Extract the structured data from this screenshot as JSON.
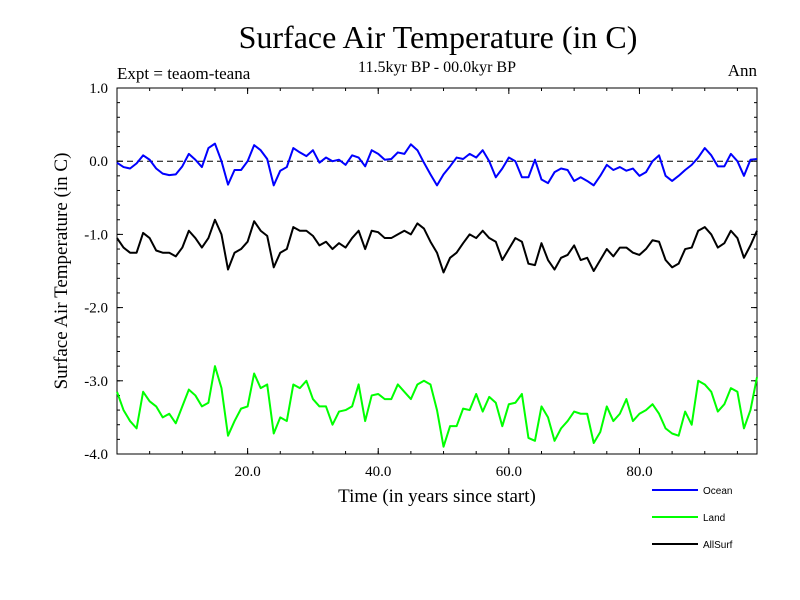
{
  "chart_data": {
    "type": "line",
    "title": "Surface Air Temperature (in C)",
    "subtitle": "11.5kyr BP - 00.0kyr BP",
    "experiment_label": "Expt = teaom-teana",
    "season_label": "Ann",
    "xlabel": "Time (in years since start)",
    "ylabel": "Surface Air Temperature (in C)",
    "xlim": [
      0,
      98
    ],
    "ylim": [
      -4.0,
      1.0
    ],
    "x_ticks": [
      20,
      40,
      60,
      80
    ],
    "x_tick_labels": [
      "20.0",
      "40.0",
      "60.0",
      "80.0"
    ],
    "y_ticks": [
      1.0,
      0.0,
      -1.0,
      -2.0,
      -3.0,
      -4.0
    ],
    "y_tick_labels": [
      "1.0",
      "0.0",
      "-1.0",
      "-2.0",
      "-3.0",
      "-4.0"
    ],
    "reference_line": 0.0,
    "x": [
      0,
      1,
      2,
      3,
      4,
      5,
      6,
      7,
      8,
      9,
      10,
      11,
      12,
      13,
      14,
      15,
      16,
      17,
      18,
      19,
      20,
      21,
      22,
      23,
      24,
      25,
      26,
      27,
      28,
      29,
      30,
      31,
      32,
      33,
      34,
      35,
      36,
      37,
      38,
      39,
      40,
      41,
      42,
      43,
      44,
      45,
      46,
      47,
      48,
      49,
      50,
      51,
      52,
      53,
      54,
      55,
      56,
      57,
      58,
      59,
      60,
      61,
      62,
      63,
      64,
      65,
      66,
      67,
      68,
      69,
      70,
      71,
      72,
      73,
      74,
      75,
      76,
      77,
      78,
      79,
      80,
      81,
      82,
      83,
      84,
      85,
      86,
      87,
      88,
      89,
      90,
      91,
      92,
      93,
      94,
      95,
      96,
      97,
      98
    ],
    "series": [
      {
        "name": "Ocean",
        "color": "#0000ff",
        "values": [
          -0.02,
          -0.08,
          -0.1,
          -0.03,
          0.08,
          0.02,
          -0.1,
          -0.17,
          -0.19,
          -0.18,
          -0.07,
          0.1,
          0.02,
          -0.08,
          0.18,
          0.24,
          0.0,
          -0.32,
          -0.12,
          -0.12,
          0.0,
          0.22,
          0.15,
          0.03,
          -0.33,
          -0.13,
          -0.08,
          0.18,
          0.12,
          0.07,
          0.15,
          -0.02,
          0.05,
          0.0,
          0.02,
          -0.05,
          0.08,
          0.05,
          -0.07,
          0.15,
          0.1,
          0.02,
          0.03,
          0.12,
          0.1,
          0.23,
          0.15,
          -0.02,
          -0.18,
          -0.33,
          -0.18,
          -0.07,
          0.05,
          0.03,
          0.1,
          0.05,
          0.15,
          0.0,
          -0.22,
          -0.1,
          0.05,
          0.0,
          -0.22,
          -0.22,
          0.02,
          -0.25,
          -0.3,
          -0.15,
          -0.1,
          -0.12,
          -0.27,
          -0.22,
          -0.27,
          -0.33,
          -0.2,
          -0.05,
          -0.12,
          -0.08,
          -0.13,
          -0.1,
          -0.2,
          -0.15,
          0.0,
          0.08,
          -0.2,
          -0.27,
          -0.2,
          -0.12,
          -0.05,
          0.05,
          0.18,
          0.08,
          -0.07,
          -0.07,
          0.1,
          0.0,
          -0.2,
          0.02,
          0.03
        ]
      },
      {
        "name": "Land",
        "color": "#00ff00",
        "values": [
          -3.15,
          -3.4,
          -3.55,
          -3.65,
          -3.15,
          -3.28,
          -3.35,
          -3.5,
          -3.45,
          -3.58,
          -3.35,
          -3.12,
          -3.2,
          -3.35,
          -3.3,
          -2.8,
          -3.1,
          -3.75,
          -3.55,
          -3.38,
          -3.35,
          -2.9,
          -3.1,
          -3.05,
          -3.72,
          -3.5,
          -3.55,
          -3.05,
          -3.1,
          -3.0,
          -3.25,
          -3.35,
          -3.35,
          -3.6,
          -3.42,
          -3.4,
          -3.35,
          -3.05,
          -3.55,
          -3.2,
          -3.18,
          -3.25,
          -3.25,
          -3.05,
          -3.15,
          -3.25,
          -3.05,
          -3.0,
          -3.05,
          -3.4,
          -3.9,
          -3.62,
          -3.62,
          -3.38,
          -3.4,
          -3.18,
          -3.42,
          -3.22,
          -3.3,
          -3.62,
          -3.32,
          -3.3,
          -3.18,
          -3.78,
          -3.82,
          -3.35,
          -3.5,
          -3.82,
          -3.65,
          -3.55,
          -3.42,
          -3.45,
          -3.45,
          -3.85,
          -3.7,
          -3.35,
          -3.55,
          -3.45,
          -3.25,
          -3.55,
          -3.45,
          -3.4,
          -3.32,
          -3.45,
          -3.65,
          -3.72,
          -3.75,
          -3.42,
          -3.6,
          -3.0,
          -3.05,
          -3.15,
          -3.42,
          -3.32,
          -3.1,
          -3.15,
          -3.65,
          -3.4,
          -2.95
        ]
      },
      {
        "name": "AllSurf",
        "color": "#000000",
        "values": [
          -1.05,
          -1.18,
          -1.25,
          -1.25,
          -0.98,
          -1.05,
          -1.22,
          -1.25,
          -1.25,
          -1.3,
          -1.18,
          -0.95,
          -1.05,
          -1.18,
          -1.05,
          -0.8,
          -1.0,
          -1.48,
          -1.25,
          -1.2,
          -1.1,
          -0.82,
          -0.95,
          -1.02,
          -1.45,
          -1.25,
          -1.2,
          -0.9,
          -0.95,
          -0.95,
          -1.02,
          -1.15,
          -1.1,
          -1.2,
          -1.12,
          -1.18,
          -1.05,
          -0.95,
          -1.2,
          -0.95,
          -0.97,
          -1.05,
          -1.05,
          -1.0,
          -0.95,
          -1.0,
          -0.85,
          -0.92,
          -1.1,
          -1.25,
          -1.52,
          -1.32,
          -1.25,
          -1.12,
          -1.0,
          -1.05,
          -0.95,
          -1.05,
          -1.1,
          -1.35,
          -1.2,
          -1.05,
          -1.1,
          -1.4,
          -1.42,
          -1.12,
          -1.35,
          -1.48,
          -1.32,
          -1.28,
          -1.15,
          -1.35,
          -1.32,
          -1.5,
          -1.35,
          -1.2,
          -1.3,
          -1.18,
          -1.18,
          -1.25,
          -1.28,
          -1.2,
          -1.08,
          -1.1,
          -1.35,
          -1.45,
          -1.4,
          -1.2,
          -1.18,
          -0.95,
          -0.9,
          -1.0,
          -1.18,
          -1.12,
          -0.95,
          -1.05,
          -1.32,
          -1.15,
          -0.95
        ]
      }
    ],
    "legend_position": "bottom-right"
  }
}
